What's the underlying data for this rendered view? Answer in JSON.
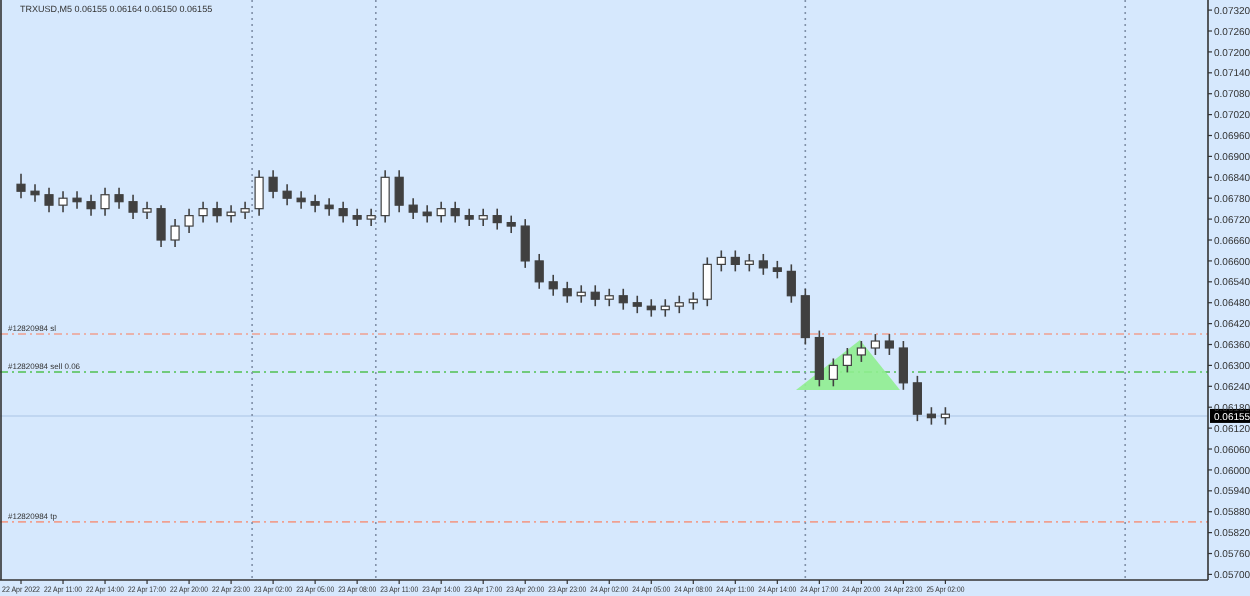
{
  "chart_data": {
    "type": "candlestick",
    "title": "TRXUSD,M5  0.06155 0.06164 0.06150 0.06155",
    "x": [
      "2022-04-22T08:00",
      "2022-04-22T09:00",
      "2022-04-22T10:00",
      "2022-04-22T11:00",
      "2022-04-22T12:00",
      "2022-04-22T13:00",
      "2022-04-22T14:00",
      "2022-04-22T15:00",
      "2022-04-22T16:00",
      "2022-04-22T17:00",
      "2022-04-22T18:00",
      "2022-04-22T19:00",
      "2022-04-22T20:00",
      "2022-04-22T21:00",
      "2022-04-22T22:00",
      "2022-04-22T23:00",
      "2022-04-23T00:00",
      "2022-04-23T01:00",
      "2022-04-23T02:00",
      "2022-04-23T03:00",
      "2022-04-23T04:00",
      "2022-04-23T05:00",
      "2022-04-23T06:00",
      "2022-04-23T07:00",
      "2022-04-23T08:00",
      "2022-04-23T09:00",
      "2022-04-23T10:00",
      "2022-04-23T11:00",
      "2022-04-23T12:00",
      "2022-04-23T13:00",
      "2022-04-23T14:00",
      "2022-04-23T15:00",
      "2022-04-23T16:00",
      "2022-04-23T17:00",
      "2022-04-23T18:00",
      "2022-04-23T19:00",
      "2022-04-23T20:00",
      "2022-04-23T21:00",
      "2022-04-23T22:00",
      "2022-04-23T23:00",
      "2022-04-24T00:00",
      "2022-04-24T01:00",
      "2022-04-24T02:00",
      "2022-04-24T03:00",
      "2022-04-24T04:00",
      "2022-04-24T05:00",
      "2022-04-24T06:00",
      "2022-04-24T07:00",
      "2022-04-24T08:00",
      "2022-04-24T09:00",
      "2022-04-24T10:00",
      "2022-04-24T11:00",
      "2022-04-24T12:00",
      "2022-04-24T13:00",
      "2022-04-24T14:00",
      "2022-04-24T15:00",
      "2022-04-24T16:00",
      "2022-04-24T17:00",
      "2022-04-24T18:00",
      "2022-04-24T19:00",
      "2022-04-24T20:00",
      "2022-04-24T21:00",
      "2022-04-24T22:00",
      "2022-04-24T23:00",
      "2022-04-25T00:00",
      "2022-04-25T01:00",
      "2022-04-25T02:00"
    ],
    "ohlc": [
      [
        0.0682,
        0.0685,
        0.0678,
        0.068
      ],
      [
        0.068,
        0.0682,
        0.0677,
        0.0679
      ],
      [
        0.0679,
        0.0681,
        0.0674,
        0.0676
      ],
      [
        0.0676,
        0.068,
        0.0674,
        0.0678
      ],
      [
        0.0678,
        0.068,
        0.0675,
        0.0677
      ],
      [
        0.0677,
        0.0679,
        0.0673,
        0.0675
      ],
      [
        0.0675,
        0.0681,
        0.0673,
        0.0679
      ],
      [
        0.0679,
        0.0681,
        0.0675,
        0.0677
      ],
      [
        0.0677,
        0.0679,
        0.0672,
        0.0674
      ],
      [
        0.0674,
        0.0677,
        0.0672,
        0.0675
      ],
      [
        0.0675,
        0.0676,
        0.0664,
        0.0666
      ],
      [
        0.0666,
        0.0672,
        0.0664,
        0.067
      ],
      [
        0.067,
        0.0675,
        0.0668,
        0.0673
      ],
      [
        0.0673,
        0.0677,
        0.0671,
        0.0675
      ],
      [
        0.0675,
        0.0677,
        0.0671,
        0.0673
      ],
      [
        0.0673,
        0.0676,
        0.0671,
        0.0674
      ],
      [
        0.0674,
        0.0677,
        0.0672,
        0.0675
      ],
      [
        0.0675,
        0.0686,
        0.0673,
        0.0684
      ],
      [
        0.0684,
        0.0686,
        0.0678,
        0.068
      ],
      [
        0.068,
        0.0682,
        0.0676,
        0.0678
      ],
      [
        0.0678,
        0.068,
        0.0675,
        0.0677
      ],
      [
        0.0677,
        0.0679,
        0.0674,
        0.0676
      ],
      [
        0.0676,
        0.0678,
        0.0673,
        0.0675
      ],
      [
        0.0675,
        0.0677,
        0.0671,
        0.0673
      ],
      [
        0.0673,
        0.0675,
        0.067,
        0.0672
      ],
      [
        0.0672,
        0.0675,
        0.067,
        0.0673
      ],
      [
        0.0673,
        0.0686,
        0.0671,
        0.0684
      ],
      [
        0.0684,
        0.0686,
        0.0674,
        0.0676
      ],
      [
        0.0676,
        0.0678,
        0.0672,
        0.0674
      ],
      [
        0.0674,
        0.0676,
        0.0671,
        0.0673
      ],
      [
        0.0673,
        0.0677,
        0.0671,
        0.0675
      ],
      [
        0.0675,
        0.0677,
        0.0671,
        0.0673
      ],
      [
        0.0673,
        0.0675,
        0.067,
        0.0672
      ],
      [
        0.0672,
        0.0675,
        0.067,
        0.0673
      ],
      [
        0.0673,
        0.0675,
        0.0669,
        0.0671
      ],
      [
        0.0671,
        0.0673,
        0.0668,
        0.067
      ],
      [
        0.067,
        0.0672,
        0.0658,
        0.066
      ],
      [
        0.066,
        0.0662,
        0.0652,
        0.0654
      ],
      [
        0.0654,
        0.0656,
        0.065,
        0.0652
      ],
      [
        0.0652,
        0.0654,
        0.0648,
        0.065
      ],
      [
        0.065,
        0.0653,
        0.0648,
        0.0651
      ],
      [
        0.0651,
        0.0653,
        0.0647,
        0.0649
      ],
      [
        0.0649,
        0.0652,
        0.0647,
        0.065
      ],
      [
        0.065,
        0.0652,
        0.0646,
        0.0648
      ],
      [
        0.0648,
        0.065,
        0.0645,
        0.0647
      ],
      [
        0.0647,
        0.0649,
        0.0644,
        0.0646
      ],
      [
        0.0646,
        0.0649,
        0.0644,
        0.0647
      ],
      [
        0.0647,
        0.065,
        0.0645,
        0.0648
      ],
      [
        0.0648,
        0.0651,
        0.0646,
        0.0649
      ],
      [
        0.0649,
        0.0661,
        0.0647,
        0.0659
      ],
      [
        0.0659,
        0.0663,
        0.0657,
        0.0661
      ],
      [
        0.0661,
        0.0663,
        0.0657,
        0.0659
      ],
      [
        0.0659,
        0.0662,
        0.0657,
        0.066
      ],
      [
        0.066,
        0.0662,
        0.0656,
        0.0658
      ],
      [
        0.0658,
        0.066,
        0.0655,
        0.0657
      ],
      [
        0.0657,
        0.0659,
        0.0648,
        0.065
      ],
      [
        0.065,
        0.0652,
        0.0636,
        0.0638
      ],
      [
        0.0638,
        0.064,
        0.0624,
        0.0626
      ],
      [
        0.0626,
        0.0632,
        0.0624,
        0.063
      ],
      [
        0.063,
        0.0635,
        0.0628,
        0.0633
      ],
      [
        0.0633,
        0.0637,
        0.0631,
        0.0635
      ],
      [
        0.0635,
        0.0639,
        0.0633,
        0.0637
      ],
      [
        0.0637,
        0.0639,
        0.0633,
        0.0635
      ],
      [
        0.0635,
        0.0637,
        0.0623,
        0.0625
      ],
      [
        0.0625,
        0.0627,
        0.0614,
        0.0616
      ],
      [
        0.0616,
        0.0618,
        0.0613,
        0.0615
      ],
      [
        0.0615,
        0.0618,
        0.0613,
        0.0616
      ]
    ],
    "color": "#404040",
    "xlim": [
      "2022-04-22T06:30",
      "2022-04-25T20:45"
    ],
    "xticks": [
      {
        "value": "2022-04-22T08:00",
        "label": "22 Apr 2022"
      },
      {
        "value": "2022-04-22T11:00",
        "label": "22 Apr 11:00"
      },
      {
        "value": "2022-04-22T14:00",
        "label": "22 Apr 14:00"
      },
      {
        "value": "2022-04-22T17:00",
        "label": "22 Apr 17:00"
      },
      {
        "value": "2022-04-22T20:00",
        "label": "22 Apr 20:00"
      },
      {
        "value": "2022-04-22T23:00",
        "label": "22 Apr 23:00"
      },
      {
        "value": "2022-04-23T02:00",
        "label": "23 Apr 02:00"
      },
      {
        "value": "2022-04-23T05:00",
        "label": "23 Apr 05:00"
      },
      {
        "value": "2022-04-23T08:00",
        "label": "23 Apr 08:00"
      },
      {
        "value": "2022-04-23T11:00",
        "label": "23 Apr 11:00"
      },
      {
        "value": "2022-04-23T14:00",
        "label": "23 Apr 14:00"
      },
      {
        "value": "2022-04-23T17:00",
        "label": "23 Apr 17:00"
      },
      {
        "value": "2022-04-23T20:00",
        "label": "23 Apr 20:00"
      },
      {
        "value": "2022-04-23T23:00",
        "label": "23 Apr 23:00"
      },
      {
        "value": "2022-04-24T02:00",
        "label": "24 Apr 02:00"
      },
      {
        "value": "2022-04-24T05:00",
        "label": "24 Apr 05:00"
      },
      {
        "value": "2022-04-24T08:00",
        "label": "24 Apr 08:00"
      },
      {
        "value": "2022-04-24T11:00",
        "label": "24 Apr 11:00"
      },
      {
        "value": "2022-04-24T14:00",
        "label": "24 Apr 14:00"
      },
      {
        "value": "2022-04-24T17:00",
        "label": "24 Apr 17:00"
      },
      {
        "value": "2022-04-24T20:00",
        "label": "24 Apr 20:00"
      },
      {
        "value": "2022-04-24T23:00",
        "label": "24 Apr 23:00"
      },
      {
        "value": "2022-04-25T02:00",
        "label": "25 Apr 02:00"
      }
    ],
    "ylim": [
      0.05684,
      0.07349
    ],
    "yticks": [
      {
        "value": 0.0732,
        "label": "0.07320"
      },
      {
        "value": 0.0726,
        "label": "0.07260"
      },
      {
        "value": 0.072,
        "label": "0.07200"
      },
      {
        "value": 0.0714,
        "label": "0.07140"
      },
      {
        "value": 0.0708,
        "label": "0.07080"
      },
      {
        "value": 0.0702,
        "label": "0.07020"
      },
      {
        "value": 0.0696,
        "label": "0.06960"
      },
      {
        "value": 0.069,
        "label": "0.06900"
      },
      {
        "value": 0.0684,
        "label": "0.06840"
      },
      {
        "value": 0.0678,
        "label": "0.06780"
      },
      {
        "value": 0.0672,
        "label": "0.06720"
      },
      {
        "value": 0.0666,
        "label": "0.06660"
      },
      {
        "value": 0.066,
        "label": "0.06600"
      },
      {
        "value": 0.0654,
        "label": "0.06540"
      },
      {
        "value": 0.0648,
        "label": "0.06480"
      },
      {
        "value": 0.0642,
        "label": "0.06420"
      },
      {
        "value": 0.0636,
        "label": "0.06360"
      },
      {
        "value": 0.063,
        "label": "0.06300"
      },
      {
        "value": 0.0624,
        "label": "0.06240"
      },
      {
        "value": 0.0618,
        "label": "0.06180"
      },
      {
        "value": 0.0612,
        "label": "0.06120"
      },
      {
        "value": 0.0606,
        "label": "0.06060"
      },
      {
        "value": 0.06,
        "label": "0.06000"
      },
      {
        "value": 0.0594,
        "label": "0.05940"
      },
      {
        "value": 0.0588,
        "label": "0.05880"
      },
      {
        "value": 0.0582,
        "label": "0.05820"
      },
      {
        "value": 0.0576,
        "label": "0.05760"
      },
      {
        "value": 0.057,
        "label": "0.05700"
      }
    ],
    "ref_lines": [
      {
        "axis": "y",
        "value": 0.0639,
        "label": "#12820984 sl",
        "color": "#f0a090",
        "line_style": "dashdot"
      },
      {
        "axis": "y",
        "value": 0.06281,
        "label": "#12820984 sell 0.06",
        "color": "#50c050",
        "line_style": "dashdot"
      },
      {
        "axis": "y",
        "value": 0.05851,
        "label": "#12820984 tp",
        "color": "#f0a090",
        "line_style": "dashdot"
      },
      {
        "axis": "y",
        "value": 0.06155,
        "label": "0.06155",
        "color": "#b8d0ec",
        "line_style": "solid"
      },
      {
        "axis": "x",
        "value": "2022-04-23T00:30",
        "color": "#8090a8",
        "line_style": "dotted"
      },
      {
        "axis": "x",
        "value": "2022-04-23T09:20",
        "color": "#8090a8",
        "line_style": "dotted"
      },
      {
        "axis": "x",
        "value": "2022-04-24T16:00",
        "color": "#8090a8",
        "line_style": "dotted"
      },
      {
        "axis": "x",
        "value": "2022-04-25T14:50",
        "color": "#8090a8",
        "line_style": "dotted"
      }
    ],
    "grid": false
  }
}
